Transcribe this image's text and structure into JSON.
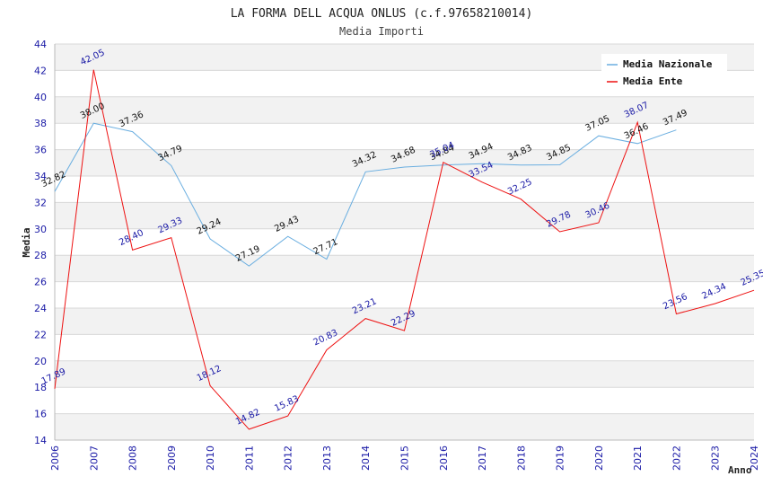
{
  "chart_data": {
    "type": "line",
    "title": "LA FORMA DELL ACQUA ONLUS (c.f.97658210014)",
    "subtitle": "Media Importi",
    "xlabel": "Anno",
    "ylabel": "Media",
    "ylim": [
      14,
      44
    ],
    "ytick_step": 2,
    "grid": true,
    "legend_position": "top-right",
    "x": [
      2006,
      2007,
      2008,
      2009,
      2010,
      2011,
      2012,
      2013,
      2014,
      2015,
      2016,
      2017,
      2018,
      2019,
      2020,
      2021,
      2022,
      2023,
      2024
    ],
    "series": [
      {
        "name": "Media Nazionale",
        "color": "#6aaee0",
        "label_color": "#111111",
        "values": [
          32.82,
          38.0,
          37.36,
          34.79,
          29.24,
          27.19,
          29.43,
          27.71,
          34.32,
          34.68,
          34.84,
          34.94,
          34.83,
          34.85,
          37.05,
          36.46,
          37.49,
          null,
          null
        ],
        "labels": [
          "32.82",
          "38.00",
          "37.36",
          "34.79",
          "29.24",
          "27.19",
          "29.43",
          "27.71",
          "34.32",
          "34.68",
          "34.84",
          "34.94",
          "34.83",
          "34.85",
          "37.05",
          "36.46",
          "37.49",
          null,
          null
        ]
      },
      {
        "name": "Media Ente",
        "color": "#ee1111",
        "label_color": "#1a1aa6",
        "values": [
          17.89,
          42.05,
          28.4,
          29.33,
          18.12,
          14.82,
          15.83,
          20.83,
          23.21,
          22.29,
          35.04,
          33.54,
          32.25,
          29.78,
          30.46,
          38.07,
          23.56,
          24.34,
          25.35
        ],
        "labels": [
          "17.89",
          "42.05",
          "28.40",
          "29.33",
          "18.12",
          "14.82",
          "15.83",
          "20.83",
          "23.21",
          "22.29",
          "35.04",
          "33.54",
          "32.25",
          "29.78",
          "30.46",
          "38.07",
          "23.56",
          "24.34",
          "25.35"
        ]
      }
    ]
  },
  "colors": {
    "band_light": "#f2f2f2",
    "grid": "#d8d8d8",
    "tick_text": "#1a1aa6"
  }
}
